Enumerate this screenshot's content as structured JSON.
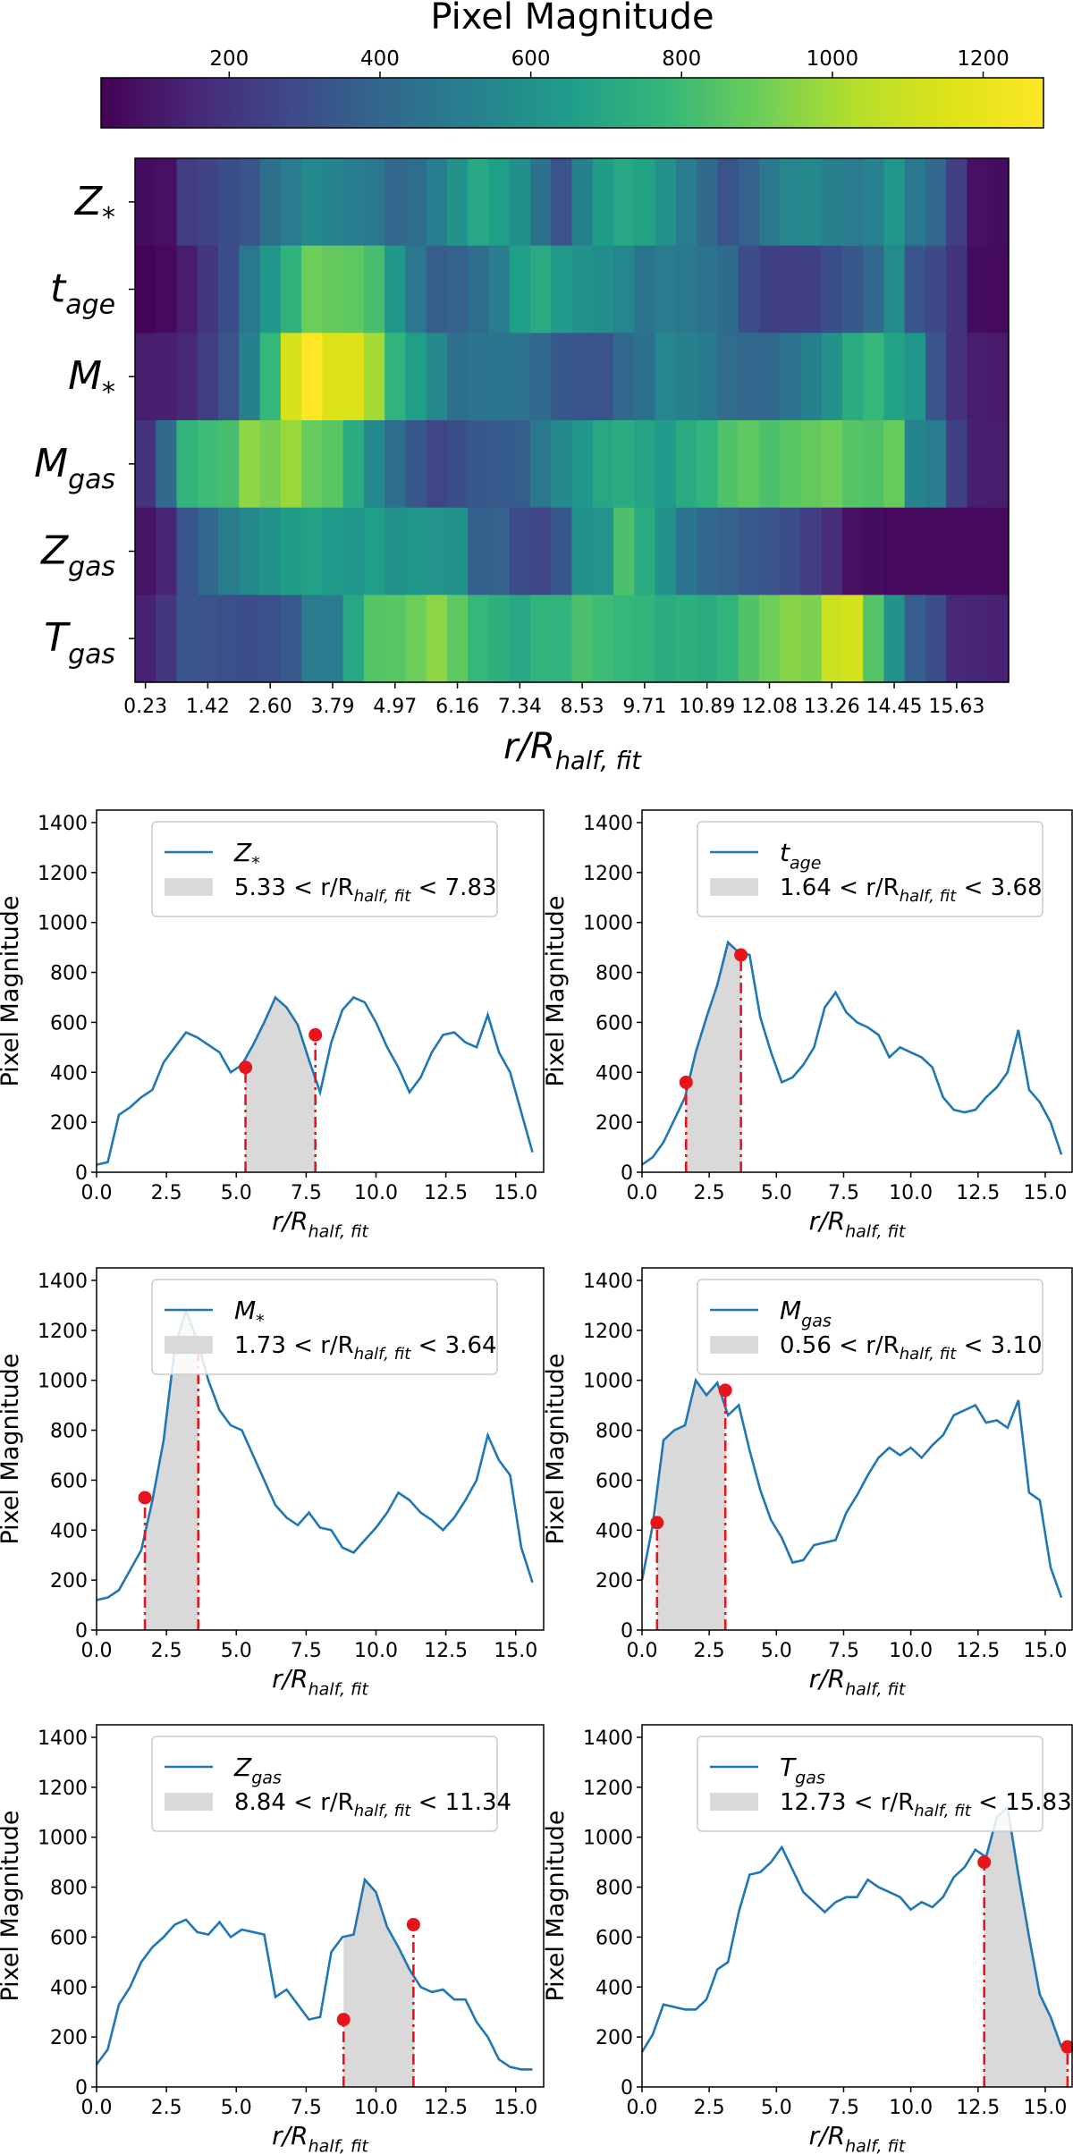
{
  "chart_data": [
    {
      "type": "heatmap",
      "colorbar": {
        "title": "Pixel Magnitude",
        "ticks": [
          200,
          400,
          600,
          800,
          1000,
          1200
        ],
        "range": [
          30,
          1280
        ],
        "colormap": "viridis",
        "orientation": "horizontal",
        "position": "top"
      },
      "ylabels": [
        {
          "base": "Z",
          "sub": "*"
        },
        {
          "base": "t",
          "sub": "age"
        },
        {
          "base": "M",
          "sub": "*"
        },
        {
          "base": "M",
          "sub": "gas"
        },
        {
          "base": "Z",
          "sub": "gas"
        },
        {
          "base": "T",
          "sub": "gas"
        }
      ],
      "xticklabels": [
        "0.23",
        "1.42",
        "2.60",
        "3.79",
        "4.97",
        "6.16",
        "7.34",
        "8.53",
        "9.71",
        "10.89",
        "12.08",
        "13.26",
        "14.45",
        "15.63"
      ],
      "xlabel": {
        "base": "r/R",
        "sub": "half, fit"
      },
      "n_columns": 42,
      "rows": [
        [
          70,
          80,
          230,
          260,
          300,
          330,
          440,
          500,
          560,
          540,
          510,
          480,
          400,
          430,
          510,
          600,
          700,
          660,
          590,
          450,
          320,
          520,
          650,
          700,
          680,
          600,
          500,
          420,
          320,
          380,
          480,
          550,
          560,
          520,
          500,
          530,
          620,
          480,
          400,
          240,
          80,
          70
        ],
        [
          40,
          60,
          120,
          210,
          300,
          480,
          620,
          750,
          900,
          880,
          870,
          820,
          620,
          480,
          360,
          380,
          430,
          500,
          660,
          720,
          640,
          600,
          580,
          550,
          460,
          500,
          480,
          460,
          420,
          300,
          250,
          240,
          250,
          300,
          340,
          400,
          570,
          330,
          280,
          200,
          70,
          60
        ],
        [
          120,
          130,
          160,
          240,
          320,
          520,
          780,
          1140,
          1280,
          1160,
          1160,
          1000,
          760,
          660,
          560,
          440,
          460,
          470,
          460,
          410,
          340,
          330,
          320,
          400,
          450,
          550,
          520,
          490,
          430,
          400,
          410,
          460,
          520,
          600,
          720,
          780,
          680,
          620,
          330,
          190,
          120,
          110
        ],
        [
          200,
          420,
          760,
          800,
          820,
          960,
          920,
          980,
          890,
          860,
          720,
          560,
          430,
          340,
          270,
          300,
          340,
          350,
          360,
          480,
          560,
          620,
          700,
          720,
          690,
          640,
          720,
          760,
          840,
          870,
          830,
          860,
          880,
          900,
          850,
          840,
          890,
          540,
          500,
          250,
          130,
          120
        ],
        [
          90,
          150,
          330,
          400,
          500,
          560,
          600,
          650,
          670,
          640,
          620,
          660,
          600,
          620,
          610,
          600,
          370,
          380,
          290,
          270,
          340,
          600,
          610,
          830,
          720,
          600,
          470,
          410,
          380,
          350,
          320,
          300,
          230,
          170,
          80,
          70,
          60,
          60,
          60,
          60,
          60,
          60
        ],
        [
          140,
          210,
          330,
          320,
          310,
          300,
          310,
          350,
          500,
          500,
          700,
          850,
          860,
          900,
          960,
          870,
          780,
          740,
          700,
          760,
          760,
          830,
          800,
          780,
          760,
          720,
          740,
          720,
          760,
          840,
          900,
          950,
          930,
          1100,
          1120,
          850,
          600,
          370,
          300,
          160,
          150,
          140
        ]
      ]
    },
    {
      "type": "line",
      "panel": "Z*",
      "legend": {
        "series": {
          "base": "Z",
          "sub": "*"
        },
        "range_text": [
          "5.33 < r/R",
          "half, fit",
          " < 7.83"
        ]
      },
      "series": [
        {
          "x": [
            0,
            0.4,
            0.8,
            1.2,
            1.6,
            2.0,
            2.4,
            2.8,
            3.2,
            3.6,
            4.0,
            4.4,
            4.8,
            5.2,
            5.6,
            6.0,
            6.4,
            6.8,
            7.2,
            7.6,
            8.0,
            8.4,
            8.8,
            9.2,
            9.6,
            10.0,
            10.4,
            10.8,
            11.2,
            11.6,
            12.0,
            12.4,
            12.8,
            13.2,
            13.6,
            14.0,
            14.4,
            14.8,
            15.2,
            15.6
          ],
          "y": [
            30,
            40,
            230,
            260,
            300,
            330,
            440,
            500,
            560,
            540,
            510,
            480,
            400,
            430,
            510,
            600,
            700,
            660,
            590,
            450,
            320,
            520,
            650,
            700,
            680,
            600,
            500,
            420,
            320,
            380,
            480,
            550,
            560,
            520,
            500,
            630,
            480,
            400,
            240,
            80
          ]
        }
      ],
      "shade": [
        5.33,
        7.83
      ],
      "markers": [
        {
          "x": 5.33,
          "y": 420
        },
        {
          "x": 7.83,
          "y": 550
        }
      ],
      "xlim": [
        0,
        16
      ],
      "ylim": [
        0,
        1450
      ],
      "xticks": [
        "0.0",
        "2.5",
        "5.0",
        "7.5",
        "10.0",
        "12.5",
        "15.0"
      ],
      "yticks": [
        "0",
        "200",
        "400",
        "600",
        "800",
        "1000",
        "1200",
        "1400"
      ],
      "ylabel": "Pixel Magnitude",
      "xlabel": {
        "base": "r/R",
        "sub": "half, fit"
      }
    },
    {
      "type": "line",
      "panel": "tage",
      "legend": {
        "series": {
          "base": "t",
          "sub": "age"
        },
        "range_text": [
          "1.64 < r/R",
          "half, fit",
          " < 3.68"
        ]
      },
      "series": [
        {
          "x": [
            0,
            0.4,
            0.8,
            1.2,
            1.6,
            2.0,
            2.4,
            2.8,
            3.2,
            3.6,
            4.0,
            4.4,
            4.8,
            5.2,
            5.6,
            6.0,
            6.4,
            6.8,
            7.2,
            7.6,
            8.0,
            8.4,
            8.8,
            9.2,
            9.6,
            10.0,
            10.4,
            10.8,
            11.2,
            11.6,
            12.0,
            12.4,
            12.8,
            13.2,
            13.6,
            14.0,
            14.4,
            14.8,
            15.2,
            15.6
          ],
          "y": [
            30,
            60,
            120,
            210,
            300,
            480,
            620,
            750,
            920,
            880,
            870,
            620,
            480,
            360,
            380,
            430,
            500,
            660,
            720,
            640,
            600,
            580,
            550,
            460,
            500,
            480,
            460,
            420,
            300,
            250,
            240,
            250,
            300,
            340,
            400,
            570,
            330,
            280,
            200,
            70
          ]
        }
      ],
      "shade": [
        1.64,
        3.68
      ],
      "markers": [
        {
          "x": 1.64,
          "y": 360
        },
        {
          "x": 3.68,
          "y": 870
        }
      ],
      "xlim": [
        0,
        16
      ],
      "ylim": [
        0,
        1450
      ],
      "xticks": [
        "0.0",
        "2.5",
        "5.0",
        "7.5",
        "10.0",
        "12.5",
        "15.0"
      ],
      "yticks": [
        "0",
        "200",
        "400",
        "600",
        "800",
        "1000",
        "1200",
        "1400"
      ],
      "ylabel": "Pixel Magnitude",
      "xlabel": {
        "base": "r/R",
        "sub": "half, fit"
      }
    },
    {
      "type": "line",
      "panel": "M*",
      "legend": {
        "series": {
          "base": "M",
          "sub": "*"
        },
        "range_text": [
          "1.73 < r/R",
          "half, fit",
          " < 3.64"
        ]
      },
      "series": [
        {
          "x": [
            0,
            0.4,
            0.8,
            1.2,
            1.6,
            2.0,
            2.4,
            2.8,
            3.2,
            3.6,
            4.0,
            4.4,
            4.8,
            5.2,
            5.6,
            6.0,
            6.4,
            6.8,
            7.2,
            7.6,
            8.0,
            8.4,
            8.8,
            9.2,
            9.6,
            10.0,
            10.4,
            10.8,
            11.2,
            11.6,
            12.0,
            12.4,
            12.8,
            13.2,
            13.6,
            14.0,
            14.4,
            14.8,
            15.2,
            15.6
          ],
          "y": [
            120,
            130,
            160,
            240,
            320,
            520,
            760,
            1130,
            1280,
            1160,
            1000,
            880,
            820,
            800,
            700,
            600,
            500,
            450,
            420,
            470,
            410,
            400,
            330,
            310,
            360,
            410,
            470,
            550,
            520,
            470,
            440,
            400,
            450,
            520,
            600,
            780,
            680,
            620,
            330,
            190
          ]
        }
      ],
      "shade": [
        1.73,
        3.64
      ],
      "markers": [
        {
          "x": 1.73,
          "y": 530
        },
        {
          "x": 3.64,
          "y": 1150
        }
      ],
      "xlim": [
        0,
        16
      ],
      "ylim": [
        0,
        1450
      ],
      "xticks": [
        "0.0",
        "2.5",
        "5.0",
        "7.5",
        "10.0",
        "12.5",
        "15.0"
      ],
      "yticks": [
        "0",
        "200",
        "400",
        "600",
        "800",
        "1000",
        "1200",
        "1400"
      ],
      "ylabel": "Pixel Magnitude",
      "xlabel": {
        "base": "r/R",
        "sub": "half, fit"
      }
    },
    {
      "type": "line",
      "panel": "Mgas",
      "legend": {
        "series": {
          "base": "M",
          "sub": "gas"
        },
        "range_text": [
          "0.56 < r/R",
          "half, fit",
          " < 3.10"
        ]
      },
      "series": [
        {
          "x": [
            0,
            0.4,
            0.8,
            1.2,
            1.6,
            2.0,
            2.4,
            2.8,
            3.2,
            3.6,
            4.0,
            4.4,
            4.8,
            5.2,
            5.6,
            6.0,
            6.4,
            6.8,
            7.2,
            7.6,
            8.0,
            8.4,
            8.8,
            9.2,
            9.6,
            10.0,
            10.4,
            10.8,
            11.2,
            11.6,
            12.0,
            12.4,
            12.8,
            13.2,
            13.6,
            14.0,
            14.4,
            14.8,
            15.2,
            15.6
          ],
          "y": [
            200,
            420,
            760,
            800,
            820,
            1000,
            940,
            990,
            860,
            900,
            720,
            560,
            440,
            370,
            270,
            280,
            340,
            350,
            360,
            470,
            540,
            620,
            690,
            730,
            700,
            730,
            690,
            740,
            780,
            860,
            880,
            900,
            830,
            840,
            810,
            920,
            550,
            520,
            250,
            130
          ]
        }
      ],
      "shade": [
        0.56,
        3.1
      ],
      "markers": [
        {
          "x": 0.56,
          "y": 430
        },
        {
          "x": 3.1,
          "y": 960
        }
      ],
      "xlim": [
        0,
        16
      ],
      "ylim": [
        0,
        1450
      ],
      "xticks": [
        "0.0",
        "2.5",
        "5.0",
        "7.5",
        "10.0",
        "12.5",
        "15.0"
      ],
      "yticks": [
        "0",
        "200",
        "400",
        "600",
        "800",
        "1000",
        "1200",
        "1400"
      ],
      "ylabel": "Pixel Magnitude",
      "xlabel": {
        "base": "r/R",
        "sub": "half, fit"
      }
    },
    {
      "type": "line",
      "panel": "Zgas",
      "legend": {
        "series": {
          "base": "Z",
          "sub": "gas"
        },
        "range_text": [
          "8.84 < r/R",
          "half, fit",
          " < 11.34"
        ]
      },
      "series": [
        {
          "x": [
            0,
            0.4,
            0.8,
            1.2,
            1.6,
            2.0,
            2.4,
            2.8,
            3.2,
            3.6,
            4.0,
            4.4,
            4.8,
            5.2,
            5.6,
            6.0,
            6.4,
            6.8,
            7.2,
            7.6,
            8.0,
            8.4,
            8.8,
            9.2,
            9.6,
            10.0,
            10.4,
            10.8,
            11.2,
            11.6,
            12.0,
            12.4,
            12.8,
            13.2,
            13.6,
            14.0,
            14.4,
            14.8,
            15.2,
            15.6
          ],
          "y": [
            90,
            150,
            330,
            400,
            500,
            560,
            600,
            650,
            670,
            620,
            610,
            660,
            600,
            630,
            620,
            610,
            360,
            390,
            330,
            270,
            280,
            540,
            600,
            610,
            830,
            780,
            640,
            560,
            470,
            400,
            380,
            390,
            350,
            350,
            260,
            200,
            110,
            80,
            70,
            70
          ]
        }
      ],
      "shade": [
        8.84,
        11.34
      ],
      "markers": [
        {
          "x": 8.84,
          "y": 270
        },
        {
          "x": 11.34,
          "y": 650
        }
      ],
      "xlim": [
        0,
        16
      ],
      "ylim": [
        0,
        1450
      ],
      "xticks": [
        "0.0",
        "2.5",
        "5.0",
        "7.5",
        "10.0",
        "12.5",
        "15.0"
      ],
      "yticks": [
        "0",
        "200",
        "400",
        "600",
        "800",
        "1000",
        "1200",
        "1400"
      ],
      "ylabel": "Pixel Magnitude",
      "xlabel": {
        "base": "r/R",
        "sub": "half, fit"
      }
    },
    {
      "type": "line",
      "panel": "Tgas",
      "legend": {
        "series": {
          "base": "T",
          "sub": "gas"
        },
        "range_text": [
          "12.73 < r/R",
          "half, fit",
          " < 15.83"
        ]
      },
      "series": [
        {
          "x": [
            0,
            0.4,
            0.8,
            1.2,
            1.6,
            2.0,
            2.4,
            2.8,
            3.2,
            3.6,
            4.0,
            4.4,
            4.8,
            5.2,
            5.6,
            6.0,
            6.4,
            6.8,
            7.2,
            7.6,
            8.0,
            8.4,
            8.8,
            9.2,
            9.6,
            10.0,
            10.4,
            10.8,
            11.2,
            11.6,
            12.0,
            12.4,
            12.8,
            13.2,
            13.6,
            14.0,
            14.4,
            14.8,
            15.2,
            15.6
          ],
          "y": [
            140,
            210,
            330,
            320,
            310,
            310,
            350,
            470,
            500,
            700,
            850,
            860,
            900,
            960,
            870,
            780,
            740,
            700,
            740,
            760,
            760,
            830,
            800,
            780,
            760,
            710,
            740,
            720,
            760,
            840,
            880,
            950,
            920,
            1080,
            1120,
            850,
            600,
            370,
            280,
            160
          ]
        }
      ],
      "shade": [
        12.73,
        15.83
      ],
      "markers": [
        {
          "x": 12.73,
          "y": 900
        },
        {
          "x": 15.83,
          "y": 160
        }
      ],
      "xlim": [
        0,
        16
      ],
      "ylim": [
        0,
        1450
      ],
      "xticks": [
        "0.0",
        "2.5",
        "5.0",
        "7.5",
        "10.0",
        "12.5",
        "15.0"
      ],
      "yticks": [
        "0",
        "200",
        "400",
        "600",
        "800",
        "1000",
        "1200",
        "1400"
      ],
      "ylabel": "Pixel Magnitude",
      "xlabel": {
        "base": "r/R",
        "sub": "half, fit"
      }
    }
  ],
  "colors": {
    "line": "#1f77b4",
    "shade": "#d9d9d9",
    "marker": "#e8141c",
    "vline": "#e8141c",
    "axes": "#000000"
  }
}
